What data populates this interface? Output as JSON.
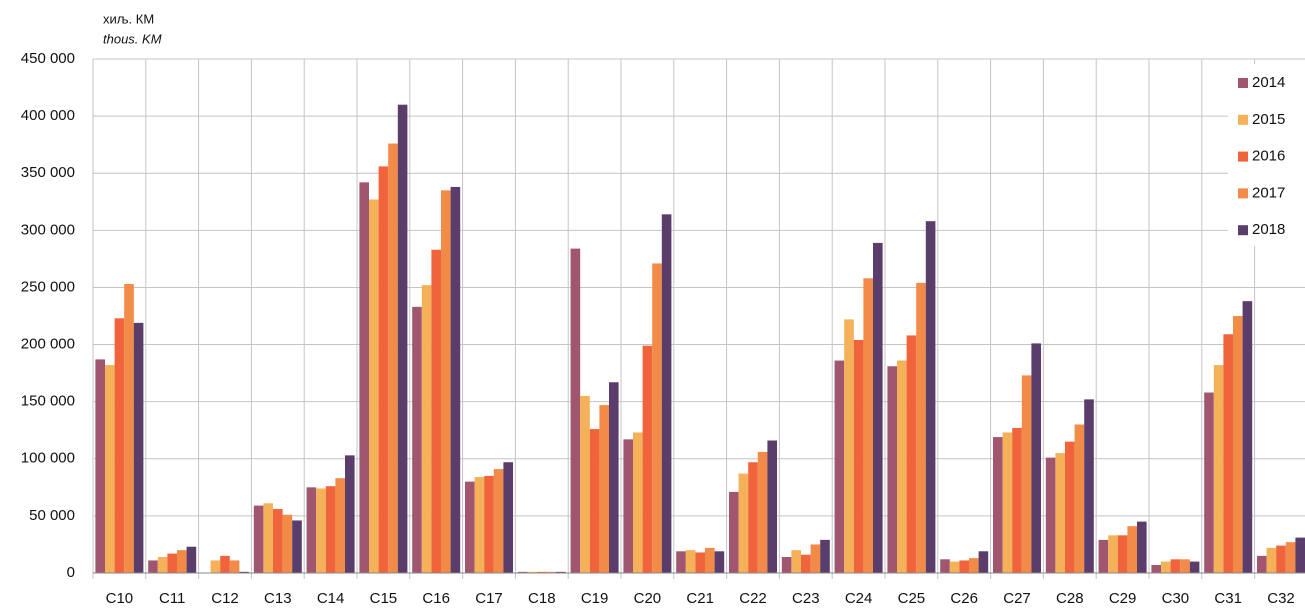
{
  "chart_data": {
    "type": "bar",
    "unit_label": "хиљ. КМ",
    "unit_label_en": "thous. KM",
    "categories": [
      "C10",
      "C11",
      "C12",
      "C13",
      "C14",
      "C15",
      "C16",
      "C17",
      "C18",
      "C19",
      "C20",
      "C21",
      "C22",
      "C23",
      "C24",
      "C25",
      "C26",
      "C27",
      "C28",
      "C29",
      "C30",
      "C31",
      "C32"
    ],
    "series": [
      {
        "name": "2014",
        "color": "#a0566f",
        "values": [
          187000,
          11000,
          0,
          59000,
          75000,
          342000,
          233000,
          80000,
          1000,
          284000,
          117000,
          19000,
          71000,
          14000,
          186000,
          181000,
          12000,
          119000,
          101000,
          29000,
          7000,
          158000,
          15000
        ]
      },
      {
        "name": "2015",
        "color": "#f5b05a",
        "values": [
          182000,
          14000,
          11000,
          61000,
          74000,
          327000,
          252000,
          84000,
          1000,
          155000,
          123000,
          20000,
          87000,
          20000,
          222000,
          186000,
          10000,
          123000,
          105000,
          33000,
          10000,
          182000,
          22000
        ]
      },
      {
        "name": "2016",
        "color": "#f0643c",
        "values": [
          223000,
          17000,
          15000,
          56000,
          76000,
          356000,
          283000,
          85000,
          1000,
          126000,
          199000,
          18000,
          97000,
          16000,
          204000,
          208000,
          11000,
          127000,
          115000,
          33000,
          12000,
          209000,
          24000
        ]
      },
      {
        "name": "2017",
        "color": "#f28a48",
        "values": [
          253000,
          20000,
          11000,
          51000,
          83000,
          376000,
          335000,
          91000,
          1000,
          147000,
          271000,
          22000,
          106000,
          25000,
          258000,
          254000,
          13000,
          173000,
          130000,
          41000,
          12000,
          225000,
          27000
        ]
      },
      {
        "name": "2018",
        "color": "#5a3d6b",
        "values": [
          219000,
          23000,
          1000,
          46000,
          103000,
          410000,
          338000,
          97000,
          1000,
          167000,
          314000,
          19000,
          116000,
          29000,
          289000,
          308000,
          19000,
          201000,
          152000,
          45000,
          10000,
          238000,
          31000
        ]
      }
    ],
    "ylim": [
      0,
      450000
    ],
    "yticks": [
      0,
      {
        "value": 50000,
        "label": "50 000"
      },
      {
        "value": 100000,
        "label": "100 000"
      },
      {
        "value": 150000,
        "label": "150 000"
      },
      {
        "value": 200000,
        "label": "200 000"
      },
      {
        "value": 250000,
        "label": "250 000"
      },
      {
        "value": 300000,
        "label": "300 000"
      },
      {
        "value": 350000,
        "label": "350 000"
      },
      {
        "value": 400000,
        "label": "400 000"
      },
      {
        "value": 450000,
        "label": "450 000"
      }
    ],
    "grid": true,
    "legend": "upper right"
  }
}
